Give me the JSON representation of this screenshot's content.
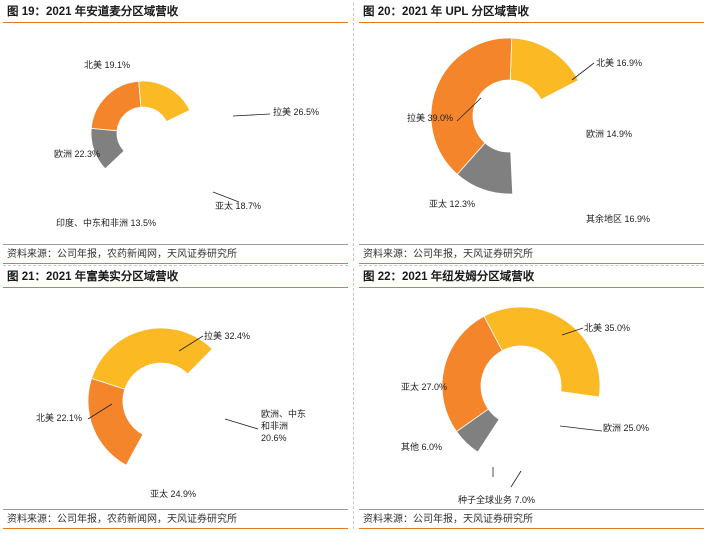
{
  "colors": {
    "orange": "#f5852a",
    "yellow": "#fbb923",
    "gray": "#808080",
    "border": "#e07b24"
  },
  "panels": [
    {
      "title": "图 19：2021 年安道麦分区域营收",
      "source": "资料来源：公司年报，农药新闻网，天风证券研究所"
    },
    {
      "title": "图 20：2021 年 UPL 分区域营收",
      "source": "资料来源：公司年报，天风证券研究所"
    },
    {
      "title": "图 21：2021 年富美实分区域营收",
      "source": "资料来源：公司年报，农药新闻网，天风证券研究所"
    },
    {
      "title": "图 22：2021 年纽发姆分区域营收",
      "source": "资料来源：公司年报，天风证券研究所"
    }
  ],
  "chart_data": [
    {
      "type": "pie",
      "title": "图 19：2021 年安道麦分区域营收",
      "start_angle_deg": 64,
      "slices": [
        {
          "name": "拉美",
          "value": 26.5,
          "label": "拉美 26.5%",
          "color": "#ffffff",
          "visible": false
        },
        {
          "name": "亚太",
          "value": 18.7,
          "label": "亚太 18.7%",
          "color": "#ffffff",
          "visible": false
        },
        {
          "name": "印度、中东和非洲",
          "value": 13.5,
          "label": "印度、中东和非洲 13.5%",
          "color": "#808080",
          "visible": true
        },
        {
          "name": "欧洲",
          "value": 22.3,
          "label": "欧洲 22.3%",
          "color": "#f5852a",
          "visible": true
        },
        {
          "name": "北美",
          "value": 19.1,
          "label": "北美 19.1%",
          "color": "#fbb923",
          "visible": true
        }
      ]
    },
    {
      "type": "pie",
      "title": "图 20：2021 年 UPL 分区域营收",
      "start_angle_deg": 2,
      "slices": [
        {
          "name": "北美",
          "value": 16.9,
          "label": "北美 16.9%",
          "color": "#fbb923",
          "visible": true
        },
        {
          "name": "欧洲",
          "value": 14.9,
          "label": "欧洲 14.9%",
          "color": "#ffffff",
          "visible": false
        },
        {
          "name": "其余地区",
          "value": 16.9,
          "label": "其余地区 16.9%",
          "color": "#ffffff",
          "visible": false
        },
        {
          "name": "亚太",
          "value": 12.3,
          "label": "亚太 12.3%",
          "color": "#808080",
          "visible": true
        },
        {
          "name": "拉美",
          "value": 39.0,
          "label": "拉美 39.0%",
          "color": "#f5852a",
          "visible": true
        }
      ]
    },
    {
      "type": "pie",
      "title": "图 21：2021 年富美实分区域营收",
      "start_angle_deg": 288,
      "slices": [
        {
          "name": "拉美",
          "value": 32.4,
          "label": "拉美 32.4%",
          "color": "#fbb923",
          "visible": true
        },
        {
          "name": "欧洲、中东和非洲",
          "value": 20.6,
          "label": "欧洲、中东和非洲 20.6%",
          "color": "#ffffff",
          "visible": false
        },
        {
          "name": "亚太",
          "value": 24.9,
          "label": "亚太 24.9%",
          "color": "#ffffff",
          "visible": false
        },
        {
          "name": "北美",
          "value": 22.1,
          "label": "北美 22.1%",
          "color": "#f5852a",
          "visible": true
        }
      ]
    },
    {
      "type": "pie",
      "title": "图 22：2021 年纽发姆分区域营收",
      "start_angle_deg": 332,
      "slices": [
        {
          "name": "北美",
          "value": 35.0,
          "label": "北美 35.0%",
          "color": "#fbb923",
          "visible": true
        },
        {
          "name": "欧洲",
          "value": 25.0,
          "label": "欧洲 25.0%",
          "color": "#ffffff",
          "visible": false
        },
        {
          "name": "种子全球业务",
          "value": 7.0,
          "label": "种子全球业务 7.0%",
          "color": "#ffffff",
          "visible": false
        },
        {
          "name": "其他",
          "value": 6.0,
          "label": "其他 6.0%",
          "color": "#808080",
          "visible": true
        },
        {
          "name": "亚太",
          "value": 27.0,
          "label": "亚太 27.0%",
          "color": "#f5852a",
          "visible": true
        }
      ]
    }
  ]
}
